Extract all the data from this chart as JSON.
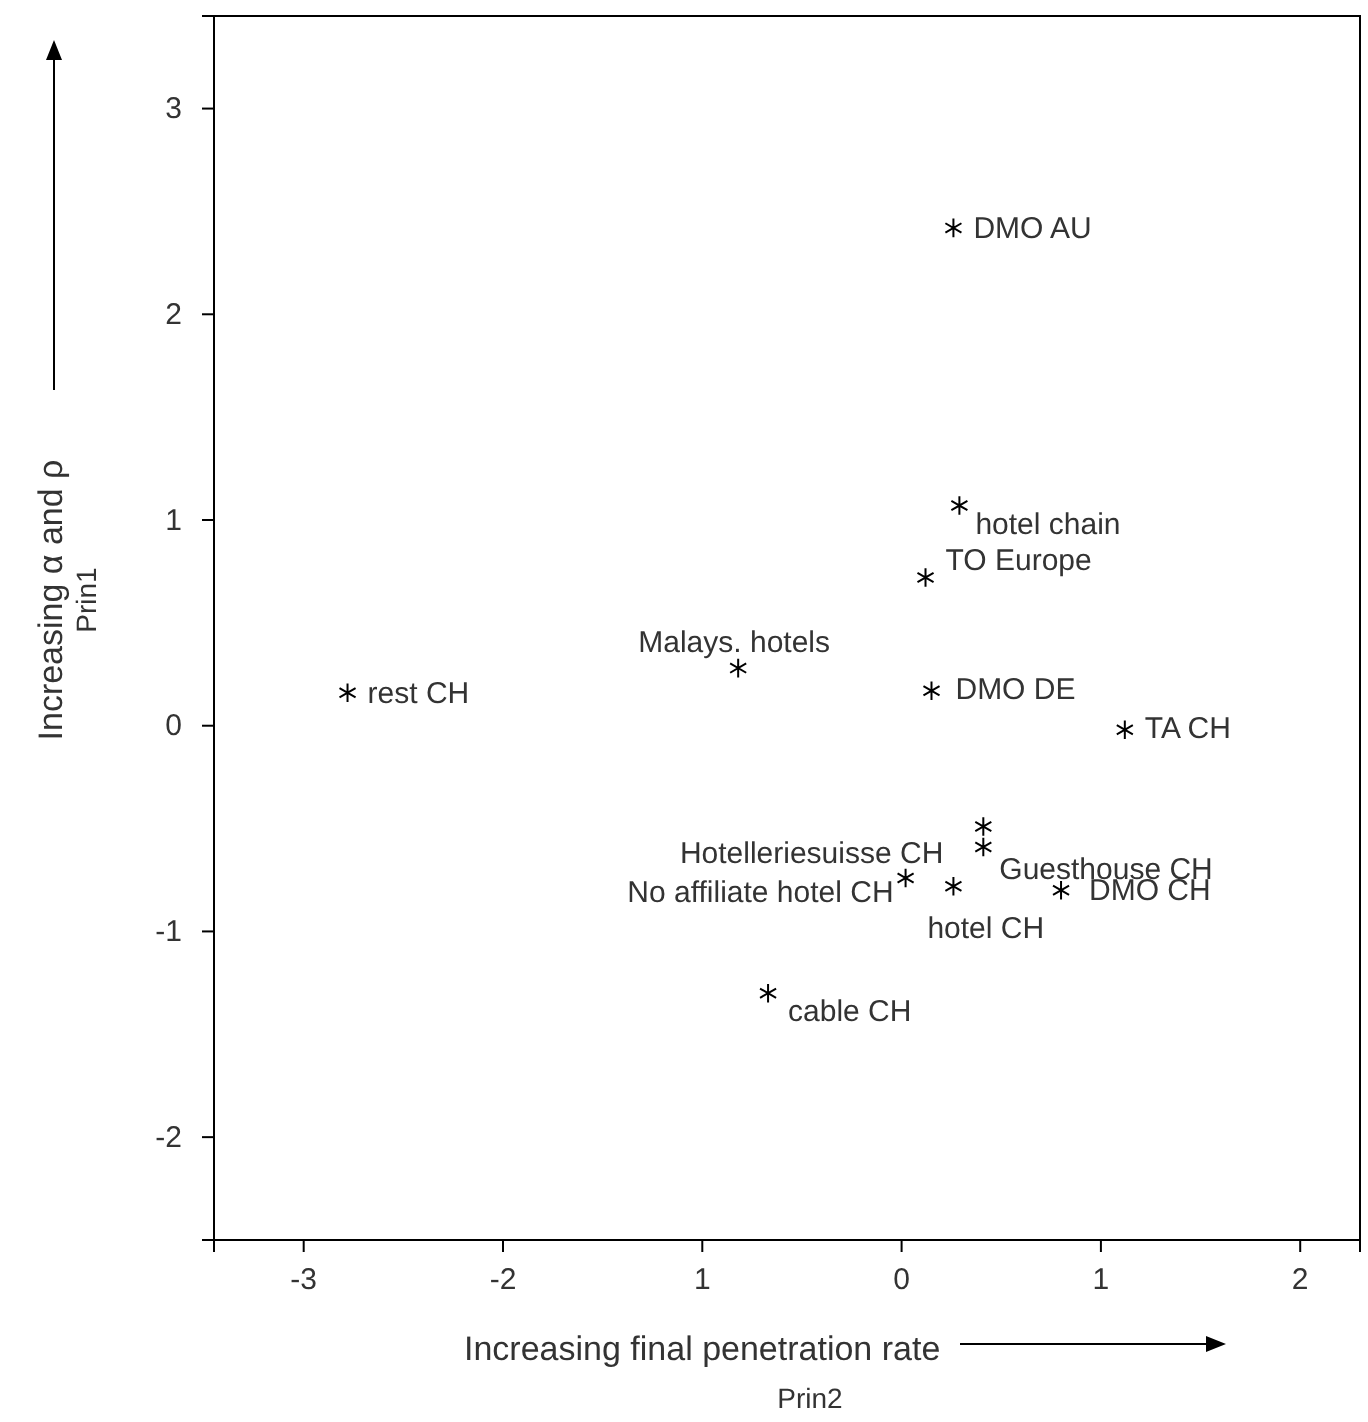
{
  "chart_data": {
    "type": "scatter",
    "xlabel": "Prin2",
    "ylabel": "Prin1",
    "x": [
      -2.78,
      0.26,
      0.29,
      0.12,
      -0.82,
      0.15,
      1.12,
      0.41,
      0.41,
      0.02,
      0.26,
      0.8,
      -0.67
    ],
    "values": [
      0.16,
      2.42,
      1.07,
      0.72,
      0.28,
      0.17,
      -0.02,
      -0.49,
      -0.59,
      -0.74,
      -0.78,
      -0.8,
      -1.3
    ],
    "color": "#000000",
    "marker": "cross",
    "xlim": [
      -3.45,
      2.3
    ],
    "ylim": [
      -2.5,
      3.45
    ],
    "xticks": [
      -3,
      -2,
      {
        "value": -1,
        "label": "1"
      },
      0,
      1,
      2
    ],
    "yticks": [
      -2,
      -1,
      0,
      1,
      2,
      3
    ],
    "grid": false,
    "annotations": [
      {
        "text": "rest CH",
        "x": -2.78,
        "y": 0.16
      },
      {
        "text": "DMO AU",
        "x": 0.26,
        "y": 2.42
      },
      {
        "text": "hotel chain",
        "x": 0.29,
        "y": 1.07
      },
      {
        "text": "TO Europe",
        "x": 0.12,
        "y": 0.72
      },
      {
        "text": "Malays. hotels",
        "x": -0.82,
        "y": 0.28
      },
      {
        "text": "DMO DE",
        "x": 0.15,
        "y": 0.17
      },
      {
        "text": "TA CH",
        "x": 1.12,
        "y": -0.02
      },
      {
        "text": "Hotelleriesuisse CH",
        "x": 0.41,
        "y": -0.49
      },
      {
        "text": "Guesthouse CH",
        "x": 0.41,
        "y": -0.59
      },
      {
        "text": "No affiliate hotel CH",
        "x": 0.02,
        "y": -0.74
      },
      {
        "text": "hotel CH",
        "x": 0.26,
        "y": -0.78
      },
      {
        "text": "DMO CH",
        "x": 0.8,
        "y": -0.8
      },
      {
        "text": "cable CH",
        "x": -0.67,
        "y": -1.3
      },
      "Increasing α and ρ",
      "Increasing final penetration rate"
    ]
  }
}
